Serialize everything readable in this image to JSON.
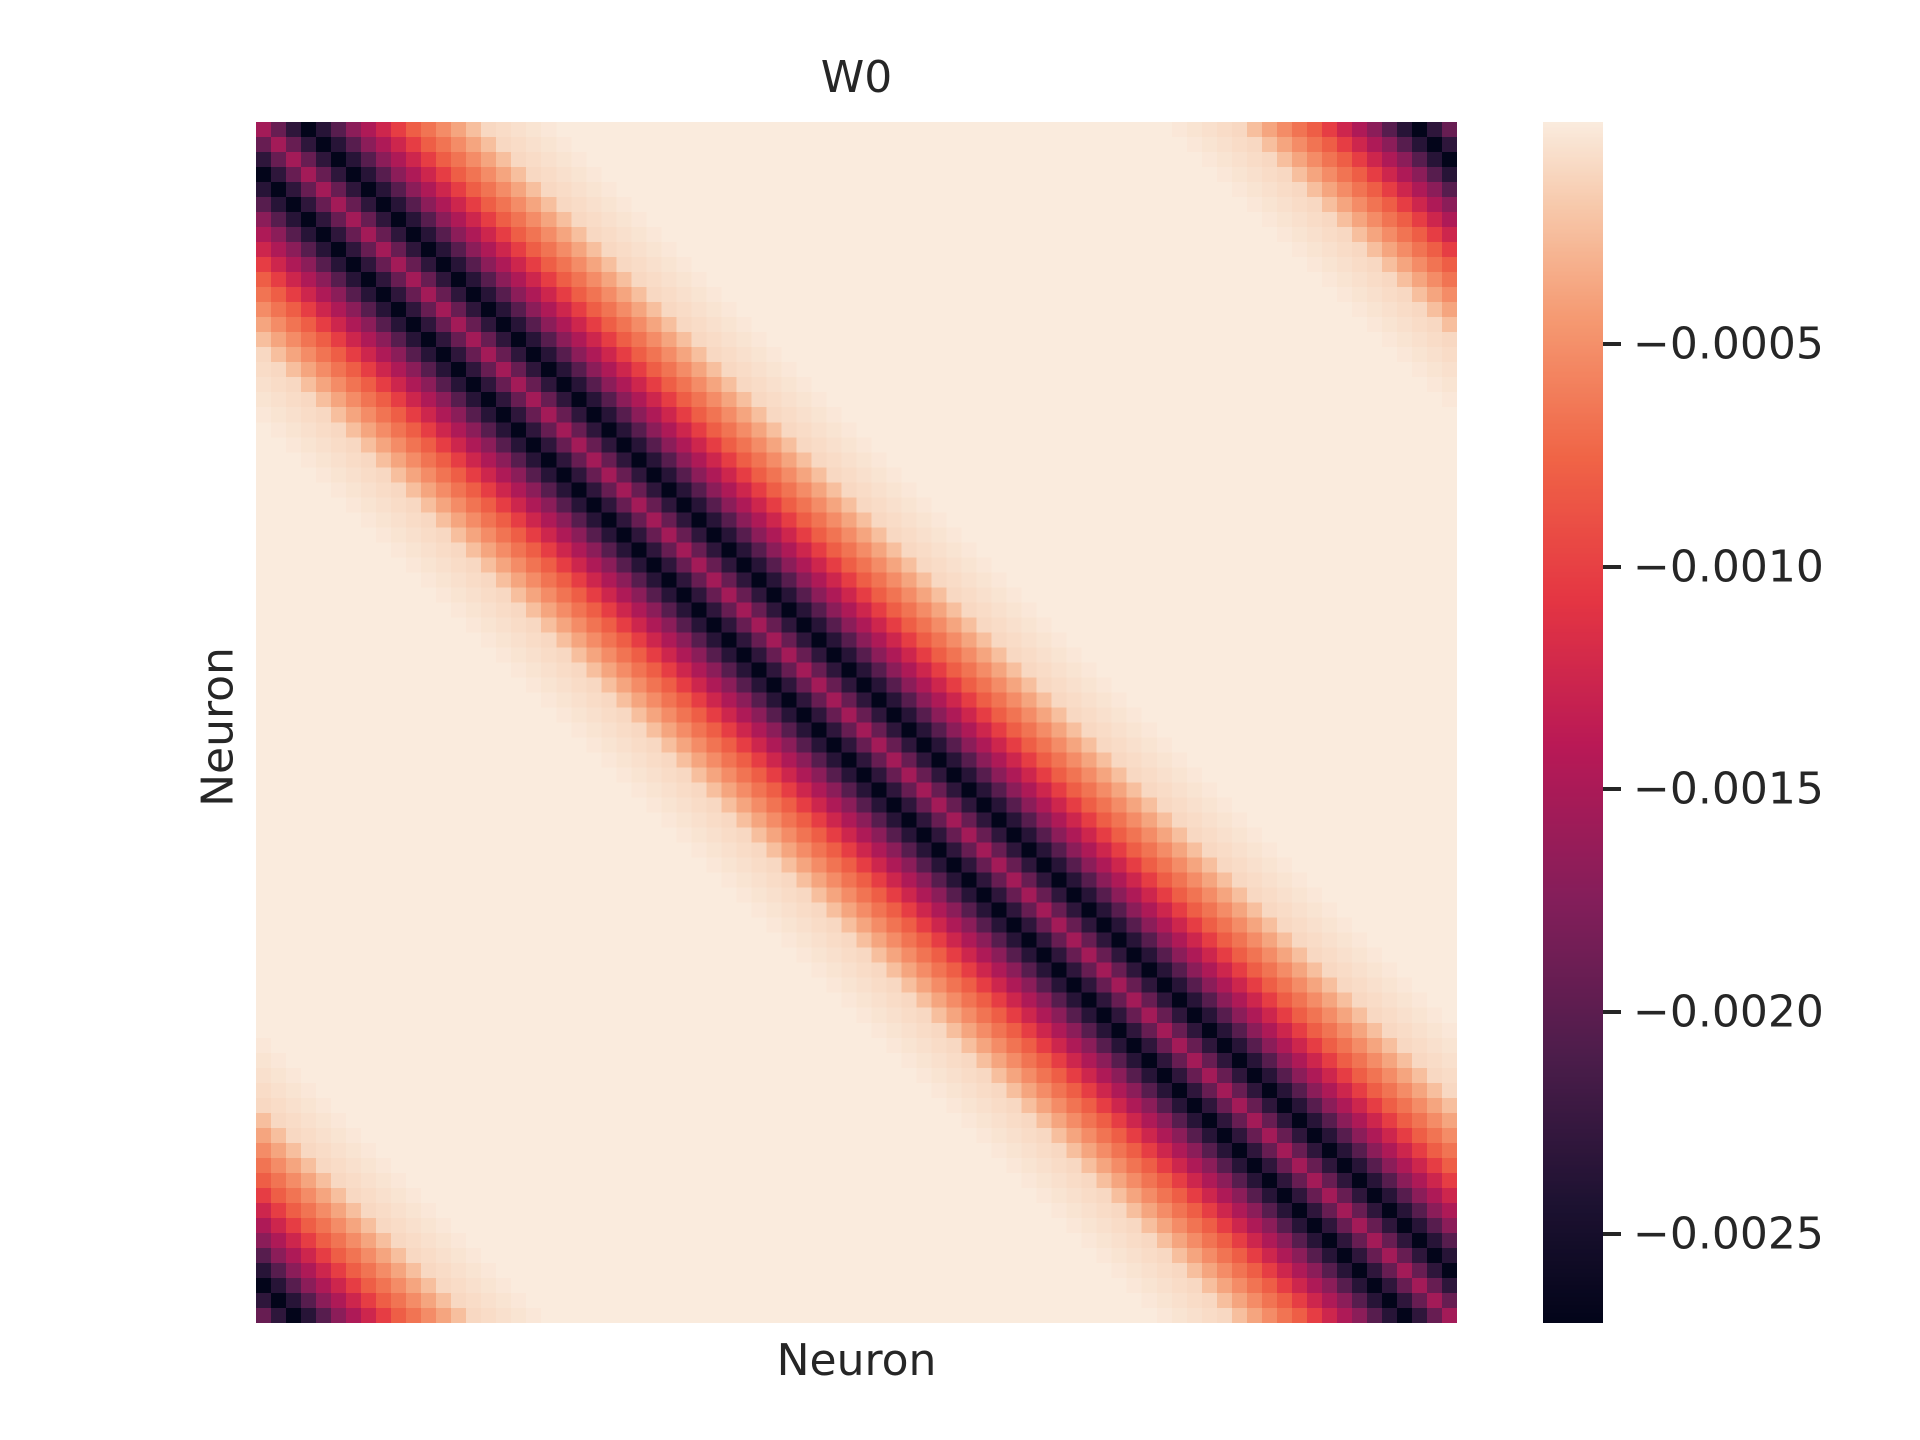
{
  "chart_data": {
    "type": "heatmap",
    "title": "W0",
    "xlabel": "Neuron",
    "ylabel": "Neuron",
    "grid": false,
    "x_ticks_visible": false,
    "y_ticks_visible": false,
    "matrix": {
      "n": 80,
      "structure": "circulant",
      "description_of_profile_by_offset": "value depends on circular offset d = (col - row) mod 80",
      "profile": [
        {
          "offset": 0,
          "value": -0.00155
        },
        {
          "offset": 3,
          "value": -0.0027
        },
        {
          "offset": 6,
          "value": -0.0017
        },
        {
          "offset": 10,
          "value": -0.0008
        },
        {
          "offset": 15,
          "value": -0.0001
        },
        {
          "offset": 20,
          "value": 0.0
        },
        {
          "offset": 40,
          "value": 0.0
        }
      ]
    },
    "colorbar": {
      "colormap": "rocket",
      "vmin": -0.0027,
      "vmax": 0.0,
      "ticks": [
        -0.0005,
        -0.001,
        -0.0015,
        -0.002,
        -0.0025
      ],
      "tick_labels": [
        "−0.0005",
        "−0.0010",
        "−0.0015",
        "−0.0020",
        "−0.0025"
      ]
    }
  }
}
